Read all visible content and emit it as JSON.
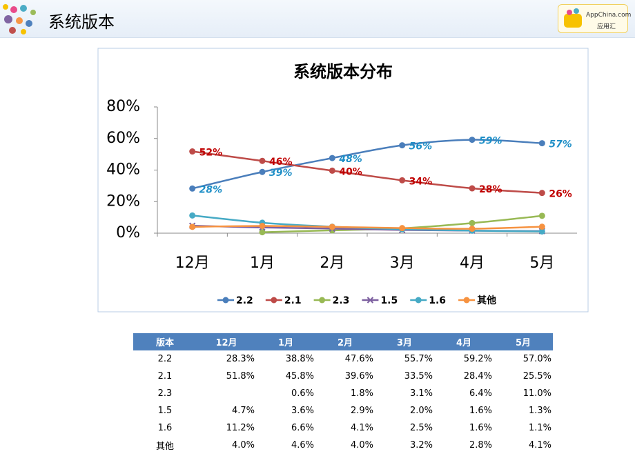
{
  "header": {
    "title": "系统版本",
    "logo": "AppChina.com",
    "logo_sub": "应用汇"
  },
  "chart_data": {
    "type": "line",
    "title": "系统版本分布",
    "categories": [
      "12月",
      "1月",
      "2月",
      "3月",
      "4月",
      "5月"
    ],
    "ylim": [
      0,
      80
    ],
    "yticks": [
      {
        "value": 0,
        "label": "0%"
      },
      {
        "value": 20,
        "label": "20%"
      },
      {
        "value": 40,
        "label": "40%"
      },
      {
        "value": 60,
        "label": "60%"
      },
      {
        "value": 80,
        "label": "80%"
      }
    ],
    "smooth": true,
    "legend": "bottom",
    "series": [
      {
        "name": "2.2",
        "color": "#4a7ebb",
        "marker": "circle",
        "label_color": "#1f8fc7",
        "values": [
          28.3,
          38.8,
          47.6,
          55.7,
          59.2,
          57.0
        ],
        "value_labels": [
          "28%",
          "39%",
          "48%",
          "56%",
          "59%",
          "57%"
        ]
      },
      {
        "name": "2.1",
        "color": "#be4b48",
        "marker": "circle",
        "label_color": "#c00000",
        "values": [
          51.8,
          45.8,
          39.6,
          33.5,
          28.4,
          25.5
        ],
        "value_labels": [
          "52%",
          "46%",
          "40%",
          "34%",
          "28%",
          "26%"
        ]
      },
      {
        "name": "2.3",
        "color": "#98b954",
        "marker": "circle",
        "values": [
          null,
          0.6,
          1.8,
          3.1,
          6.4,
          11.0
        ]
      },
      {
        "name": "1.5",
        "color": "#7d60a0",
        "marker": "x",
        "values": [
          4.7,
          3.6,
          2.9,
          2.0,
          1.6,
          1.3
        ]
      },
      {
        "name": "1.6",
        "color": "#46aac5",
        "marker": "circle",
        "values": [
          11.2,
          6.6,
          4.1,
          2.5,
          1.6,
          1.1
        ]
      },
      {
        "name": "其他",
        "color": "#f69240",
        "marker": "circle",
        "values": [
          4.0,
          4.6,
          4.0,
          3.2,
          2.8,
          4.1
        ]
      }
    ]
  },
  "table": {
    "header": [
      "版本",
      "12月",
      "1月",
      "2月",
      "3月",
      "4月",
      "5月"
    ],
    "rows": [
      [
        "2.2",
        "28.3%",
        "38.8%",
        "47.6%",
        "55.7%",
        "59.2%",
        "57.0%"
      ],
      [
        "2.1",
        "51.8%",
        "45.8%",
        "39.6%",
        "33.5%",
        "28.4%",
        "25.5%"
      ],
      [
        "2.3",
        null,
        "0.6%",
        "1.8%",
        "3.1%",
        "6.4%",
        "11.0%"
      ],
      [
        "1.5",
        "4.7%",
        "3.6%",
        "2.9%",
        "2.0%",
        "1.6%",
        "1.3%"
      ],
      [
        "1.6",
        "11.2%",
        "6.6%",
        "4.1%",
        "2.5%",
        "1.6%",
        "1.1%"
      ],
      [
        "其他",
        "4.0%",
        "4.6%",
        "4.0%",
        "3.2%",
        "2.8%",
        "4.1%"
      ]
    ]
  }
}
